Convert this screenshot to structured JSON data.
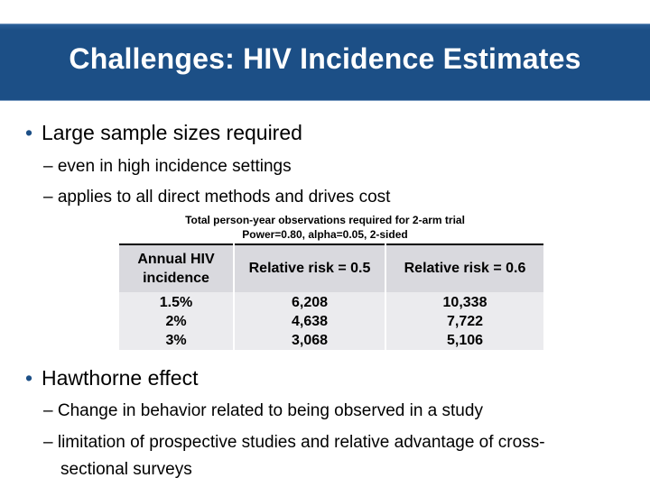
{
  "title": "Challenges: HIV Incidence Estimates",
  "bullets": [
    {
      "text": "Large sample sizes required",
      "subs": [
        "– even in high incidence settings",
        "– applies to all direct methods and drives cost"
      ]
    },
    {
      "text": "Hawthorne effect",
      "subs": [
        "– Change in behavior related to being observed in a study",
        "– limitation of prospective studies and relative advantage of cross-",
        "sectional surveys"
      ]
    }
  ],
  "bullet_symbol": "•",
  "table_caption": {
    "line1": "Total person-year observations required for 2-arm trial",
    "line2": "Power=0.80, alpha=0.05, 2-sided"
  },
  "table": {
    "headers": [
      "Annual HIV incidence",
      "Relative risk = 0.5",
      "Relative risk = 0.6"
    ],
    "columns": [
      [
        "1.5%",
        "2%",
        "3%"
      ],
      [
        "6,208",
        "4,638",
        "3,068"
      ],
      [
        "10,338",
        "7,722",
        "5,106"
      ]
    ]
  },
  "colors": {
    "title_band": "#1c4f86",
    "table_header": "#d9d9de",
    "table_body": "#ebebee"
  }
}
